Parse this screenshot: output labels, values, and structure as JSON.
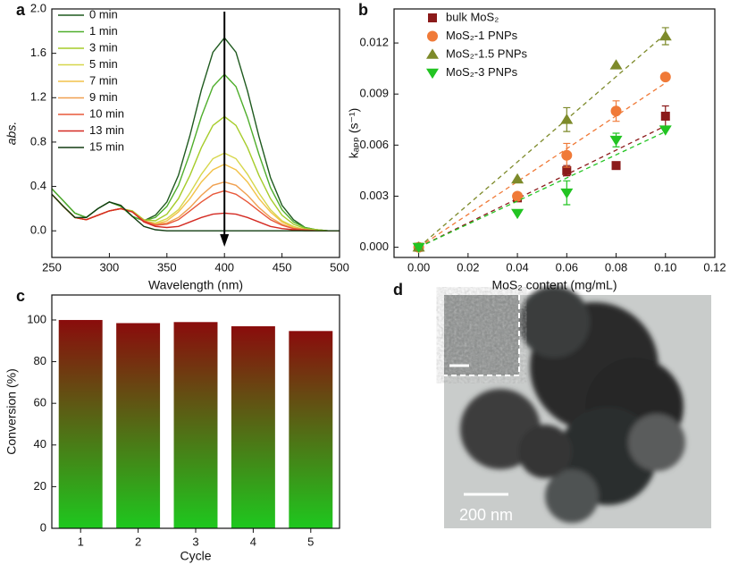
{
  "chart_data": [
    {
      "type": "line",
      "panel": "a",
      "xlabel": "Wavelength (nm)",
      "ylabel": "abs.",
      "ylabel_italic": true,
      "x": [
        250,
        260,
        270,
        280,
        290,
        300,
        310,
        320,
        330,
        340,
        350,
        360,
        370,
        380,
        390,
        400,
        410,
        420,
        430,
        440,
        450,
        460,
        470,
        480,
        490,
        500
      ],
      "xlim": [
        250,
        500
      ],
      "xticks": [
        250,
        300,
        350,
        400,
        450,
        500
      ],
      "ylim": [
        -0.24,
        2.0
      ],
      "yticks": [
        {
          "value": 0,
          "label": "0.0"
        },
        0.4,
        0.8,
        1.2,
        1.6,
        {
          "value": 2,
          "label": "2.0"
        }
      ],
      "legend": "upper left",
      "series": [
        {
          "name": "0 min",
          "color": "#1f5a1f",
          "values": [
            0.38,
            0.27,
            0.16,
            0.12,
            0.2,
            0.26,
            0.22,
            0.13,
            0.09,
            0.14,
            0.26,
            0.5,
            0.86,
            1.27,
            1.61,
            1.74,
            1.61,
            1.26,
            0.85,
            0.48,
            0.23,
            0.1,
            0.03,
            0.01,
            0,
            0
          ]
        },
        {
          "name": "1 min",
          "color": "#4fae2c",
          "values": [
            0.38,
            0.27,
            0.16,
            0.12,
            0.2,
            0.26,
            0.22,
            0.13,
            0.09,
            0.12,
            0.22,
            0.41,
            0.7,
            1.03,
            1.3,
            1.41,
            1.3,
            1.02,
            0.69,
            0.39,
            0.19,
            0.08,
            0.03,
            0.01,
            0,
            0
          ]
        },
        {
          "name": "3 min",
          "color": "#a6cc2a",
          "values": [
            0.33,
            0.22,
            0.12,
            0.1,
            0.14,
            0.18,
            0.2,
            0.18,
            0.1,
            0.09,
            0.15,
            0.29,
            0.5,
            0.75,
            0.95,
            1.03,
            0.95,
            0.75,
            0.5,
            0.29,
            0.14,
            0.06,
            0.02,
            0.01,
            0,
            0
          ]
        },
        {
          "name": "5 min",
          "color": "#d6d64a",
          "values": [
            0.33,
            0.22,
            0.12,
            0.1,
            0.14,
            0.18,
            0.2,
            0.17,
            0.09,
            0.07,
            0.11,
            0.19,
            0.34,
            0.51,
            0.65,
            0.7,
            0.65,
            0.51,
            0.34,
            0.19,
            0.09,
            0.04,
            0.01,
            0,
            0,
            0
          ]
        },
        {
          "name": "7 min",
          "color": "#f2c24a",
          "values": [
            0.33,
            0.22,
            0.12,
            0.1,
            0.14,
            0.18,
            0.2,
            0.17,
            0.09,
            0.06,
            0.09,
            0.17,
            0.29,
            0.44,
            0.55,
            0.6,
            0.55,
            0.44,
            0.29,
            0.17,
            0.08,
            0.03,
            0.01,
            0,
            0,
            0
          ]
        },
        {
          "name": "9 min",
          "color": "#f0a050",
          "values": [
            0.33,
            0.22,
            0.12,
            0.1,
            0.14,
            0.18,
            0.2,
            0.17,
            0.09,
            0.06,
            0.07,
            0.12,
            0.21,
            0.32,
            0.41,
            0.44,
            0.41,
            0.32,
            0.21,
            0.12,
            0.06,
            0.02,
            0.01,
            0,
            0,
            0
          ]
        },
        {
          "name": "10 min",
          "color": "#e8583a",
          "values": [
            0.33,
            0.22,
            0.12,
            0.1,
            0.14,
            0.18,
            0.2,
            0.17,
            0.09,
            0.05,
            0.06,
            0.1,
            0.18,
            0.26,
            0.33,
            0.36,
            0.33,
            0.26,
            0.18,
            0.1,
            0.05,
            0.02,
            0.01,
            0,
            0,
            0
          ]
        },
        {
          "name": "13 min",
          "color": "#d42a22",
          "values": [
            0.33,
            0.22,
            0.12,
            0.1,
            0.14,
            0.18,
            0.2,
            0.17,
            0.08,
            0.04,
            0.03,
            0.04,
            0.08,
            0.12,
            0.15,
            0.16,
            0.15,
            0.12,
            0.08,
            0.04,
            0.02,
            0.01,
            0,
            0,
            0,
            0
          ]
        },
        {
          "name": "15 min",
          "color": "#123c12",
          "values": [
            0.33,
            0.22,
            0.12,
            0.12,
            0.2,
            0.26,
            0.23,
            0.13,
            0.04,
            0.01,
            0,
            0,
            0,
            0,
            0,
            0,
            0,
            0,
            0,
            0,
            0,
            0,
            0,
            0,
            0,
            0
          ]
        }
      ]
    },
    {
      "type": "scatter",
      "panel": "b",
      "xlabel": "MoS₂ content (mg/mL)",
      "ylabel": "kₐₚₚ (s⁻¹)",
      "x": [
        0,
        0.04,
        0.06,
        0.08,
        0.1
      ],
      "xlim": [
        -0.01,
        0.12
      ],
      "xticks": [
        {
          "value": 0,
          "label": "0.00"
        },
        0.02,
        0.04,
        0.06,
        0.08,
        {
          "value": 0.1,
          "label": "0.10"
        },
        0.12
      ],
      "ylim": [
        -0.0006,
        0.014
      ],
      "yticks": [
        {
          "value": 0,
          "label": "0.000"
        },
        {
          "value": 0.003,
          "label": "0.003"
        },
        {
          "value": 0.006,
          "label": "0.006"
        },
        {
          "value": 0.009,
          "label": "0.009"
        },
        {
          "value": 0.012,
          "label": "0.012"
        }
      ],
      "fit_lines": true,
      "legend": "upper left",
      "series": [
        {
          "name": "bulk MoS₂",
          "color": "#8b1a1a",
          "marker": "square",
          "values": [
            0,
            0.0029,
            0.0045,
            0.0048,
            0.0077
          ],
          "errors": [
            null,
            0.0002,
            0.0003,
            null,
            0.0006
          ]
        },
        {
          "name": "MoS₂-1 PNPs",
          "color": "#f07a38",
          "marker": "circle",
          "values": [
            0,
            0.003,
            0.0054,
            0.008,
            0.01
          ],
          "errors": [
            null,
            0.0002,
            0.0007,
            0.0006,
            null
          ]
        },
        {
          "name": "MoS₂-1.5 PNPs",
          "color": "#7d8a2a",
          "marker": "triangle-up",
          "values": [
            0,
            0.004,
            0.0075,
            0.0107,
            0.0124
          ],
          "errors": [
            null,
            null,
            0.0007,
            null,
            0.0005
          ]
        },
        {
          "name": "MoS₂-3 PNPs",
          "color": "#22c422",
          "marker": "triangle-down",
          "values": [
            0,
            0.002,
            0.0032,
            0.0063,
            0.0069
          ],
          "errors": [
            null,
            null,
            0.0007,
            0.0004,
            null
          ]
        }
      ]
    },
    {
      "type": "bar",
      "panel": "c",
      "xlabel": "Cycle",
      "ylabel": "Conversion (%)",
      "categories": [
        "1",
        "2",
        "3",
        "4",
        "5"
      ],
      "values": [
        100,
        98.5,
        99,
        97,
        94.7
      ],
      "ylim": [
        0,
        112
      ],
      "yticks": [
        0,
        20,
        40,
        60,
        80,
        100
      ],
      "gradient": {
        "top": "#8a0c0c",
        "bottom": "#1ec81e"
      }
    }
  ],
  "image": {
    "panel": "d",
    "scale_bar": "200 nm"
  }
}
